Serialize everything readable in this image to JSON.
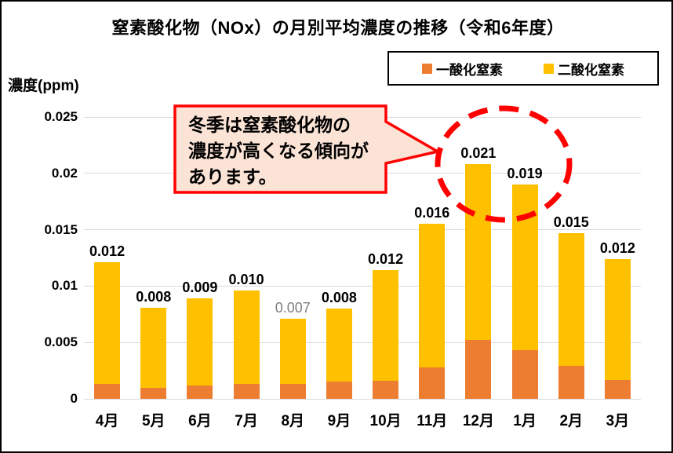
{
  "title": "窒素酸化物（NOx）の月別平均濃度の推移（令和6年度）",
  "y_axis_unit": "濃度(ppm)",
  "annotation": {
    "text": "冬季は窒素酸化物の\n濃度が高くなる傾向が\nあります。",
    "fill": "#FBE3D6",
    "border_color": "#FF0000"
  },
  "colors": {
    "no_series": "#ED7D31",
    "no2_series": "#FFC000",
    "gridline": "#D9D9D9",
    "muted_label": "#7F7F7F",
    "frame_border": "#000000"
  },
  "chart_data": {
    "type": "bar",
    "stacked": true,
    "title": "窒素酸化物（NOx）の月別平均濃度の推移（令和6年度）",
    "ylabel": "濃度(ppm)",
    "xlabel": "",
    "grid": true,
    "legend_position": "top-right",
    "ylim": [
      0,
      0.025
    ],
    "yticks": [
      0,
      0.005,
      0.01,
      0.015,
      0.02,
      0.025
    ],
    "ytick_labels": [
      "0",
      "0.005",
      "0.01",
      "0.015",
      "0.02",
      "0.025"
    ],
    "categories": [
      "4月",
      "5月",
      "6月",
      "7月",
      "8月",
      "9月",
      "10月",
      "11月",
      "12月",
      "1月",
      "2月",
      "3月"
    ],
    "series": [
      {
        "name": "一酸化窒素",
        "color": "#ED7D31",
        "values": [
          0.0013,
          0.001,
          0.0012,
          0.0013,
          0.0013,
          0.0015,
          0.0016,
          0.0028,
          0.0052,
          0.0043,
          0.0029,
          0.0017
        ]
      },
      {
        "name": "二酸化窒素",
        "color": "#FFC000",
        "values": [
          0.0108,
          0.0071,
          0.0077,
          0.0083,
          0.0058,
          0.0065,
          0.0098,
          0.0127,
          0.0156,
          0.0147,
          0.0118,
          0.0107
        ]
      }
    ],
    "total_labels": [
      "0.012",
      "0.008",
      "0.009",
      "0.010",
      "0.007",
      "0.008",
      "0.012",
      "0.016",
      "0.021",
      "0.019",
      "0.015",
      "0.012"
    ],
    "muted_label_index": 4
  }
}
